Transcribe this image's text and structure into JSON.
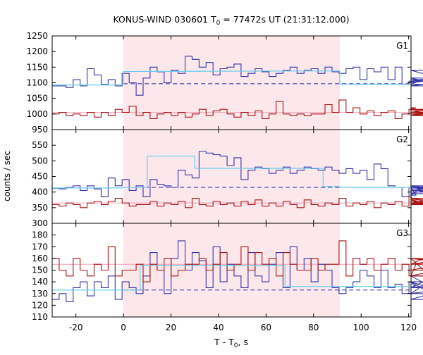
{
  "chart_data": {
    "type": "line",
    "title_main": "KONUS-WIND 030601 T",
    "title_sub": "0",
    "title_rest": " = 77472s UT (21:31:12.000)",
    "ylabel": "counts / sec",
    "xlabel_main": "T - T",
    "xlabel_sub": "0",
    "xlabel_rest": ", s",
    "xlim": [
      -30,
      121
    ],
    "xticks": [
      -20,
      0,
      20,
      40,
      60,
      80,
      100,
      120
    ],
    "xtick_labels": [
      "-20",
      "0",
      "20",
      "40",
      "60",
      "80",
      "100",
      "120"
    ],
    "shaded_interval": [
      0,
      91
    ],
    "shade_color": "#fce8ea",
    "grid": false,
    "panels": [
      {
        "name": "G1",
        "ylim": [
          950,
          1250
        ],
        "yticks": [
          950,
          1000,
          1050,
          1100,
          1150,
          1200,
          1250
        ],
        "ytick_labels": [
          "950",
          "1000",
          "1050",
          "1100",
          "1150",
          "1200",
          "1250"
        ],
        "background_level": 1097,
        "fit_segments": [
          {
            "x": [
              -30,
              0
            ],
            "y": [
              1093,
              1093
            ]
          },
          {
            "x": [
              0,
              91
            ],
            "y": [
              1136,
              1138
            ]
          },
          {
            "x": [
              91,
              121
            ],
            "y": [
              1095,
              1095
            ]
          }
        ],
        "ref_level": 1005,
        "series": [
          {
            "color": "#3333aa",
            "edges_start": -30,
            "bin_width": 2.944,
            "values": [
              1090,
              1090,
              1085,
              1110,
              1090,
              1145,
              1125,
              1095,
              1110,
              1090,
              1130,
              1100,
              1060,
              1115,
              1150,
              1135,
              1100,
              1140,
              1130,
              1185,
              1175,
              1150,
              1165,
              1125,
              1145,
              1150,
              1160,
              1120,
              1130,
              1145,
              1135,
              1120,
              1130,
              1140,
              1150,
              1130,
              1140,
              1145,
              1130,
              1150,
              1135,
              1130,
              1145,
              1150,
              1110,
              1145,
              1135,
              1150,
              1110,
              1150,
              1095,
              1105,
              1100,
              1105,
              1115,
              1095,
              1140,
              1105,
              1110,
              1090,
              1115
            ]
          },
          {
            "color": "#aa1111",
            "edges_start": -30,
            "bin_width": 2.944,
            "values": [
              1000,
              1005,
              995,
              1000,
              995,
              1005,
              990,
              1005,
              995,
              1015,
              1005,
              1025,
              995,
              1005,
              985,
              1000,
              1005,
              995,
              1005,
              990,
              1000,
              1015,
              995,
              1010,
              1015,
              1000,
              990,
              1005,
              995,
              1010,
              985,
              1000,
              1040,
              1000,
              995,
              1000,
              995,
              1000,
              1000,
              1030,
              1005,
              1045,
              1005,
              1020,
              1000,
              1010,
              995,
              1005,
              1010,
              985,
              1000,
              1015,
              1020,
              1000,
              995,
              1010,
              995,
              1000,
              1015,
              1005,
              1010
            ]
          }
        ]
      },
      {
        "name": "G2",
        "ylim": [
          300,
          600
        ],
        "yticks": [
          300,
          350,
          400,
          450,
          500,
          550
        ],
        "ytick_labels": [
          "300",
          "350",
          "400",
          "450",
          "500",
          "550"
        ],
        "background_level": 415,
        "fit_segments": [
          {
            "x": [
              -30,
              0
            ],
            "y": [
              413,
              413
            ]
          },
          {
            "x": [
              0,
              10
            ],
            "y": [
              415,
              415
            ]
          },
          {
            "x": [
              10,
              30
            ],
            "y": [
              515,
              515
            ]
          },
          {
            "x": [
              30,
              84
            ],
            "y": [
              476,
              476
            ]
          },
          {
            "x": [
              84,
              91
            ],
            "y": [
              418,
              418
            ]
          },
          {
            "x": [
              91,
              121
            ],
            "y": [
              415,
              415
            ]
          }
        ],
        "ref_level": 365,
        "series": [
          {
            "color": "#3333aa",
            "edges_start": -30,
            "bin_width": 2.944,
            "values": [
              412,
              410,
              415,
              420,
              405,
              420,
              410,
              385,
              445,
              420,
              440,
              405,
              420,
              385,
              440,
              425,
              420,
              415,
              470,
              455,
              445,
              530,
              525,
              520,
              515,
              485,
              510,
              440,
              470,
              480,
              475,
              460,
              470,
              480,
              460,
              470,
              480,
              475,
              470,
              480,
              470,
              460,
              475,
              460,
              470,
              440,
              490,
              475,
              420,
              415,
              385,
              415,
              390,
              420,
              395,
              415,
              405,
              410,
              420,
              400,
              410
            ]
          },
          {
            "color": "#aa1111",
            "edges_start": -30,
            "bin_width": 2.944,
            "values": [
              360,
              355,
              365,
              360,
              350,
              365,
              370,
              360,
              370,
              380,
              365,
              355,
              360,
              360,
              370,
              355,
              365,
              360,
              370,
              350,
              380,
              360,
              355,
              370,
              360,
              365,
              355,
              370,
              360,
              375,
              355,
              365,
              355,
              370,
              360,
              350,
              375,
              360,
              355,
              365,
              360,
              380,
              355,
              365,
              360,
              370,
              350,
              365,
              360,
              370,
              355,
              385,
              360,
              375,
              360,
              370,
              365,
              380,
              360,
              370,
              365
            ]
          }
        ]
      },
      {
        "name": "G3",
        "ylim": [
          110,
          190
        ],
        "yticks": [
          110,
          120,
          130,
          140,
          150,
          160,
          170,
          180
        ],
        "ytick_labels": [
          "110",
          "120",
          "130",
          "140",
          "150",
          "160",
          "170",
          "180"
        ],
        "background_level": 133,
        "fit_segments": [
          {
            "x": [
              -30,
              0
            ],
            "y": [
              133,
              133
            ]
          },
          {
            "x": [
              0,
              7
            ],
            "y": [
              133,
              133
            ]
          },
          {
            "x": [
              7,
              68
            ],
            "y": [
              154,
              154
            ]
          },
          {
            "x": [
              68,
              91
            ],
            "y": [
              136,
              136
            ]
          },
          {
            "x": [
              91,
              121
            ],
            "y": [
              136,
              136
            ]
          }
        ],
        "ref_level": 155,
        "series": [
          {
            "color": "#3333aa",
            "edges_start": -30,
            "bin_width": 2.944,
            "values": [
              125,
              130,
              123,
              135,
              140,
              128,
              140,
              135,
              145,
              125,
              140,
              135,
              130,
              145,
              165,
              150,
              130,
              160,
              175,
              150,
              165,
              158,
              135,
              170,
              140,
              155,
              145,
              135,
              165,
              145,
              140,
              155,
              165,
              135,
              170,
              150,
              160,
              140,
              155,
              150,
              135,
              130,
              135,
              140,
              150,
              145,
              135,
              150,
              135,
              138,
              130,
              140,
              135,
              140,
              130,
              145,
              130,
              135,
              140,
              125,
              140
            ]
          },
          {
            "color": "#aa1111",
            "edges_start": -30,
            "bin_width": 2.944,
            "values": [
              160,
              150,
              145,
              160,
              150,
              145,
              155,
              150,
              170,
              145,
              150,
              150,
              155,
              140,
              155,
              150,
              160,
              145,
              150,
              155,
              155,
              160,
              150,
              155,
              165,
              150,
              155,
              170,
              150,
              165,
              155,
              160,
              145,
              165,
              155,
              150,
              150,
              160,
              150,
              155,
              155,
              175,
              145,
              160,
              155,
              160,
              150,
              155,
              160,
              150,
              155,
              145,
              155,
              160,
              145,
              150,
              155,
              160,
              155,
              160,
              155
            ]
          }
        ]
      }
    ]
  }
}
